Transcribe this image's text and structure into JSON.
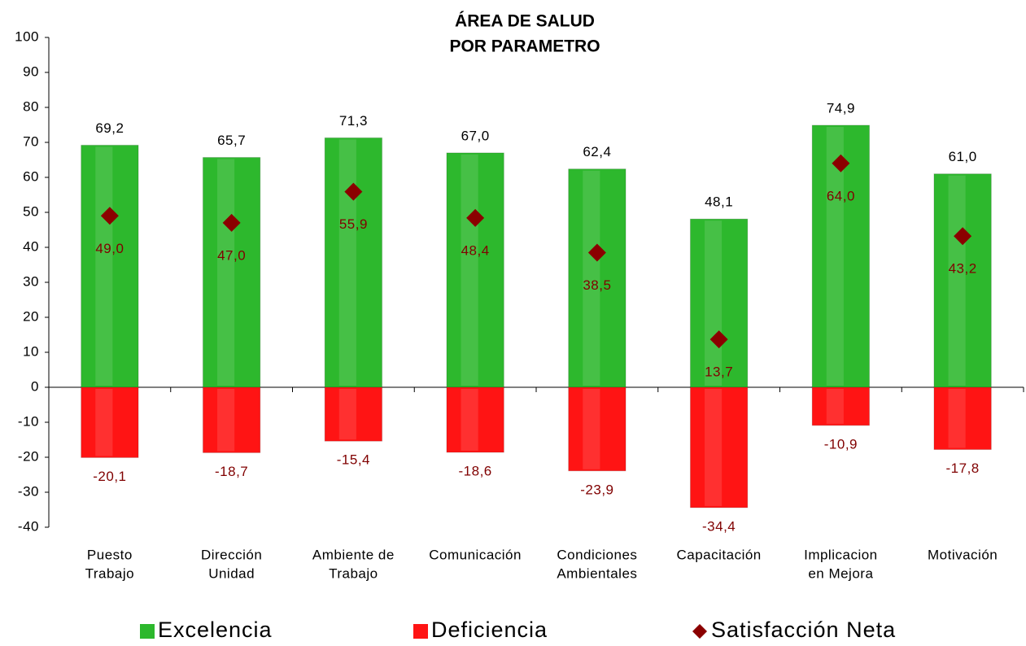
{
  "chart_data": {
    "type": "bar",
    "title": "ÁREA DE SALUD",
    "subtitle": "POR PARAMETRO",
    "categories": [
      [
        "Puesto",
        "Trabajo"
      ],
      [
        "Dirección",
        "Unidad"
      ],
      [
        "Ambiente de",
        "Trabajo"
      ],
      [
        "Comunicación"
      ],
      [
        "Condiciones",
        "Ambientales"
      ],
      [
        "Capacitación"
      ],
      [
        "Implicacion",
        "en Mejora"
      ],
      [
        "Motivación"
      ]
    ],
    "series": [
      {
        "name": "Excelencia",
        "color": "#2db82d",
        "label_color": "#000000",
        "values": [
          69.2,
          65.7,
          71.3,
          67.0,
          62.4,
          48.1,
          74.9,
          61.0
        ],
        "value_labels": [
          "69,2",
          "65,7",
          "71,3",
          "67,0",
          "62,4",
          "48,1",
          "74,9",
          "61,0"
        ]
      },
      {
        "name": "Deficiencia",
        "color": "#ff1414",
        "label_color": "#800000",
        "values": [
          -20.1,
          -18.7,
          -15.4,
          -18.6,
          -23.9,
          -34.4,
          -10.9,
          -17.8
        ],
        "value_labels": [
          "-20,1",
          "-18,7",
          "-15,4",
          "-18,6",
          "-23,9",
          "-34,4",
          "-10,9",
          "-17,8"
        ]
      },
      {
        "name": "Satisfacción Neta",
        "color": "#8b0000",
        "label_color": "#800000",
        "marker": "diamond",
        "values": [
          49.0,
          47.0,
          55.9,
          48.4,
          38.5,
          13.7,
          64.0,
          43.2
        ],
        "value_labels": [
          "49,0",
          "47,0",
          "55,9",
          "48,4",
          "38,5",
          "13,7",
          "64,0",
          "43,2"
        ]
      }
    ],
    "ylim": [
      -40,
      100
    ],
    "yticks": [
      -40,
      -30,
      -20,
      -10,
      0,
      10,
      20,
      30,
      40,
      50,
      60,
      70,
      80,
      90,
      100
    ]
  }
}
